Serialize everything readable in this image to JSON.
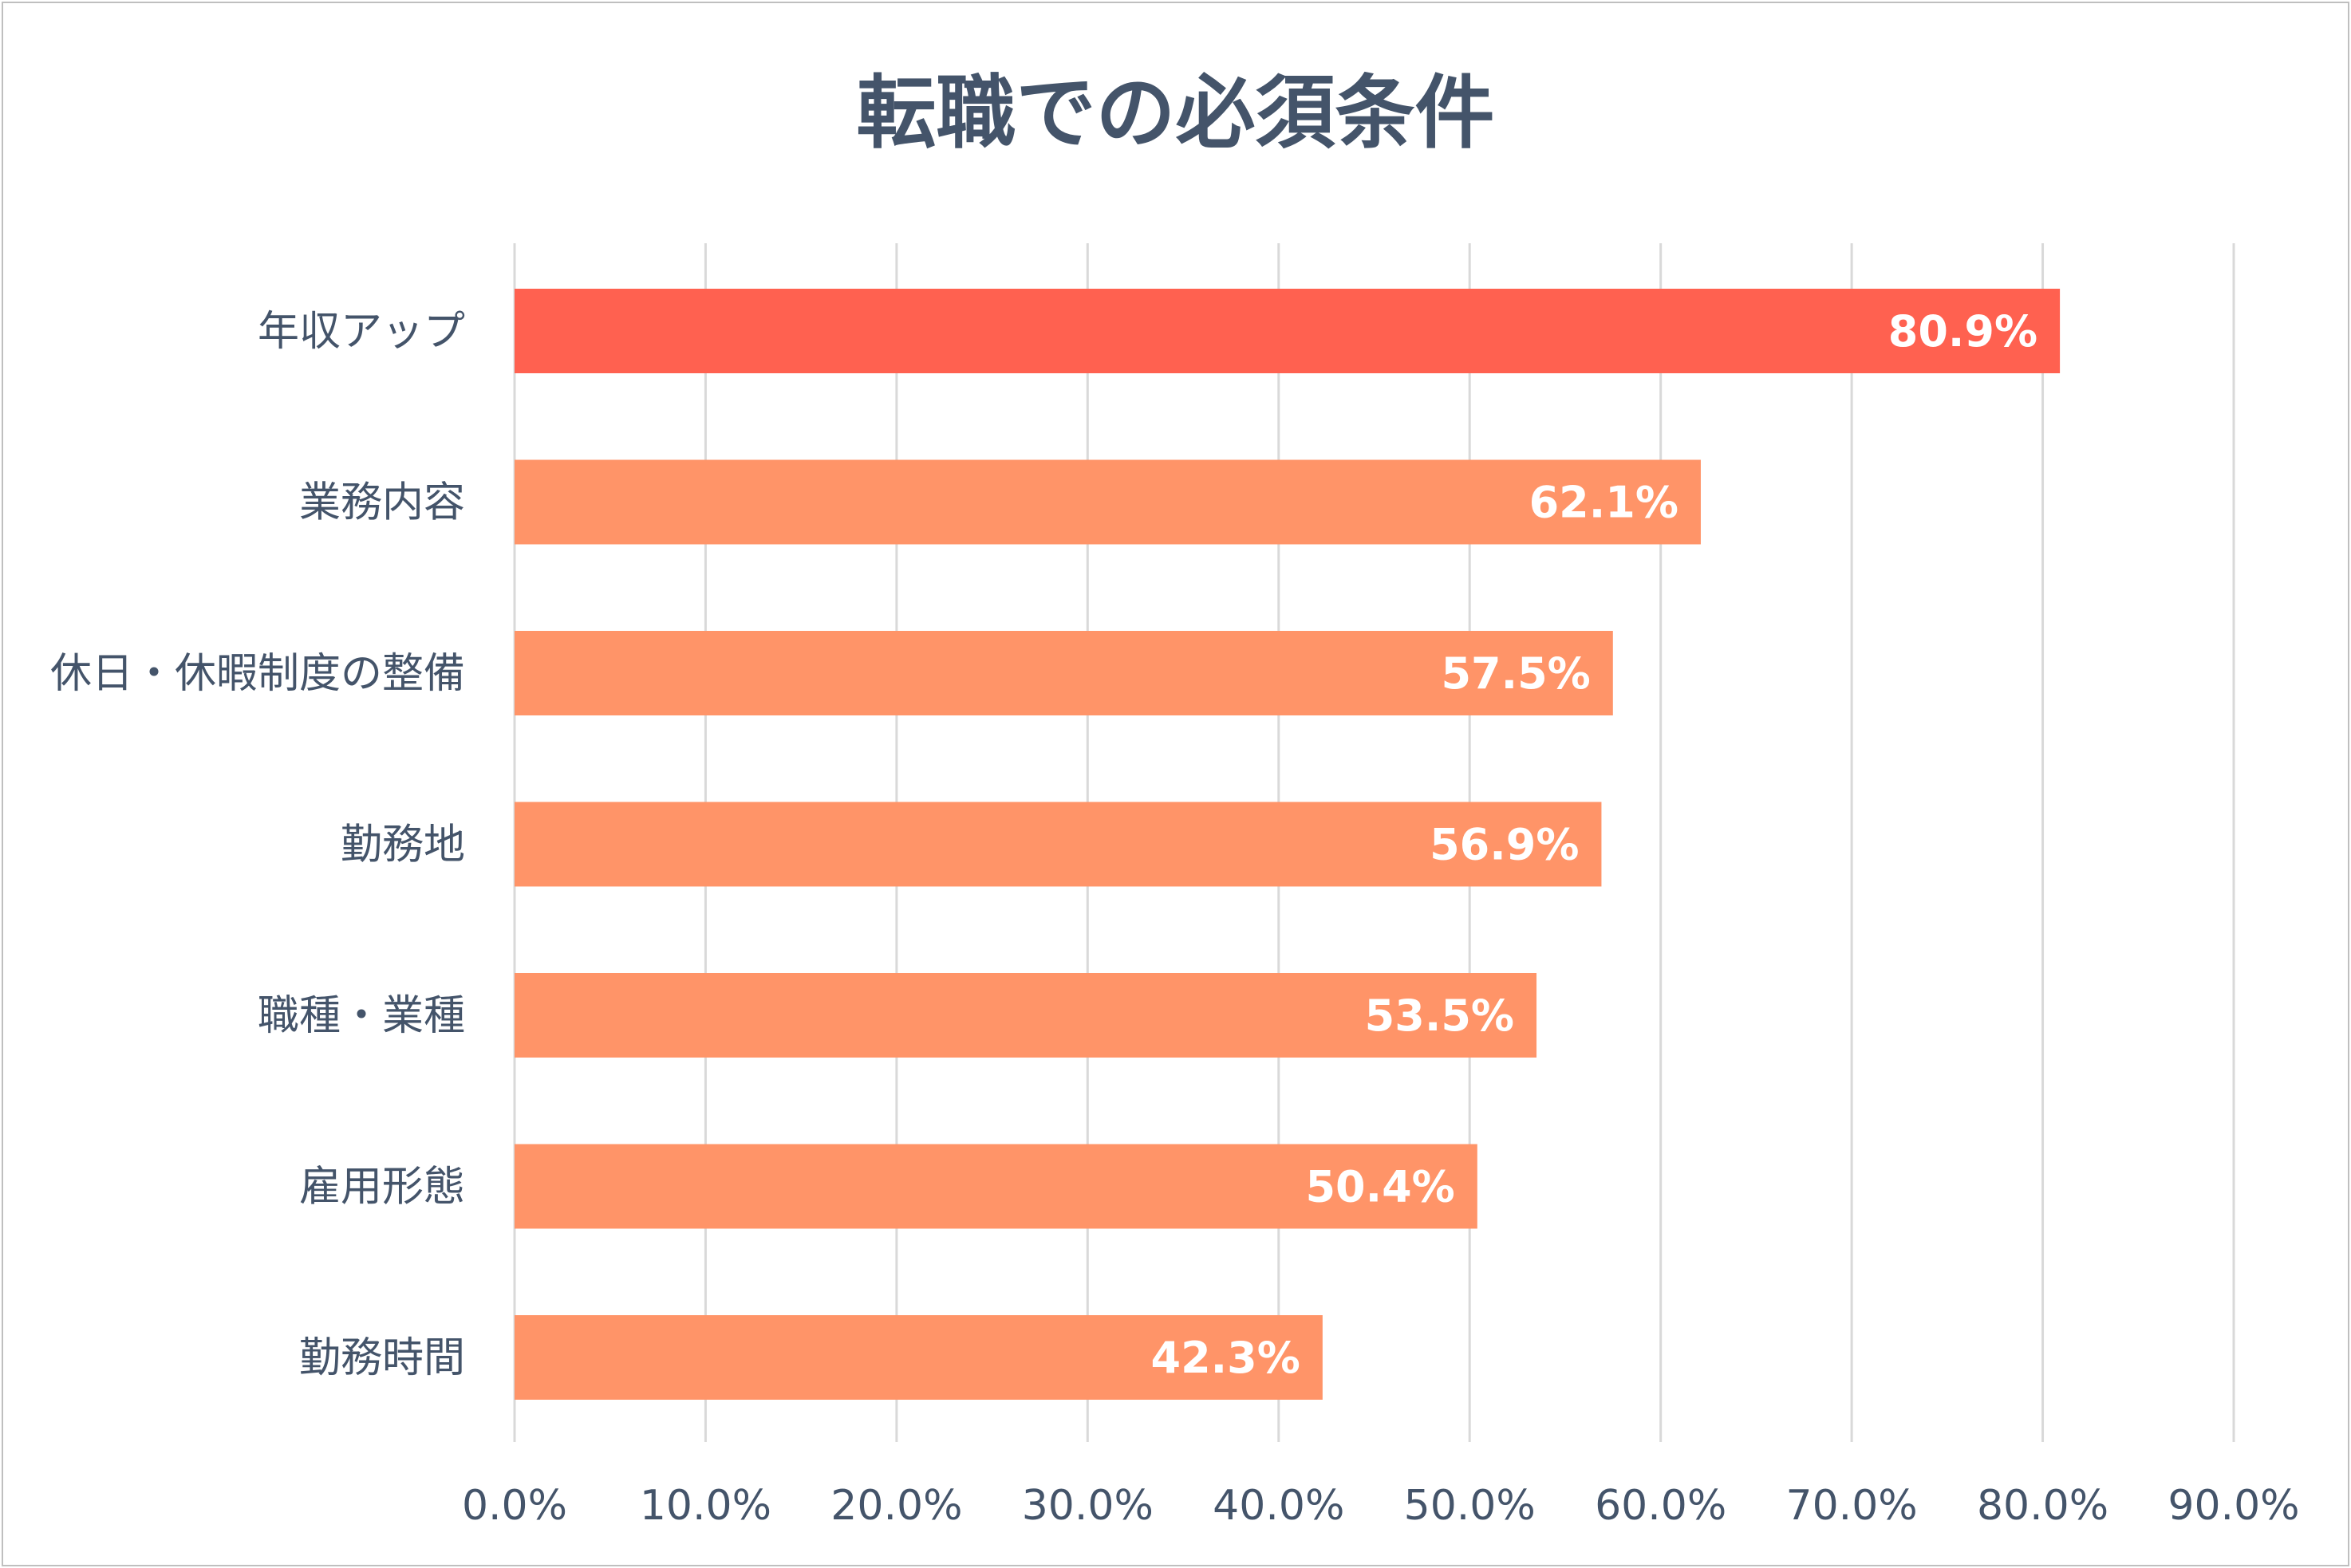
{
  "chart_data": {
    "type": "bar",
    "orientation": "horizontal",
    "title": "転職での必須条件",
    "categories": [
      "年収アップ",
      "業務内容",
      "休日・休暇制度の整備",
      "勤務地",
      "職種・業種",
      "雇用形態",
      "勤務時間"
    ],
    "values": [
      80.9,
      62.1,
      57.5,
      56.9,
      53.5,
      50.4,
      42.3
    ],
    "value_labels": [
      "80.9%",
      "62.1%",
      "57.5%",
      "56.9%",
      "53.5%",
      "50.4%",
      "42.3%"
    ],
    "x_ticks": [
      "0.0%",
      "10.0%",
      "20.0%",
      "30.0%",
      "40.0%",
      "50.0%",
      "60.0%",
      "70.0%",
      "80.0%",
      "90.0%"
    ],
    "xlim": [
      0,
      90
    ],
    "xlabel": "",
    "ylabel": "",
    "grid": true,
    "legend": "none",
    "colors": {
      "highlight": "#ff6150",
      "bar": "#ff9468",
      "grid": "#d9d9d9",
      "text": "#44546a",
      "value_text": "#ffffff"
    }
  }
}
